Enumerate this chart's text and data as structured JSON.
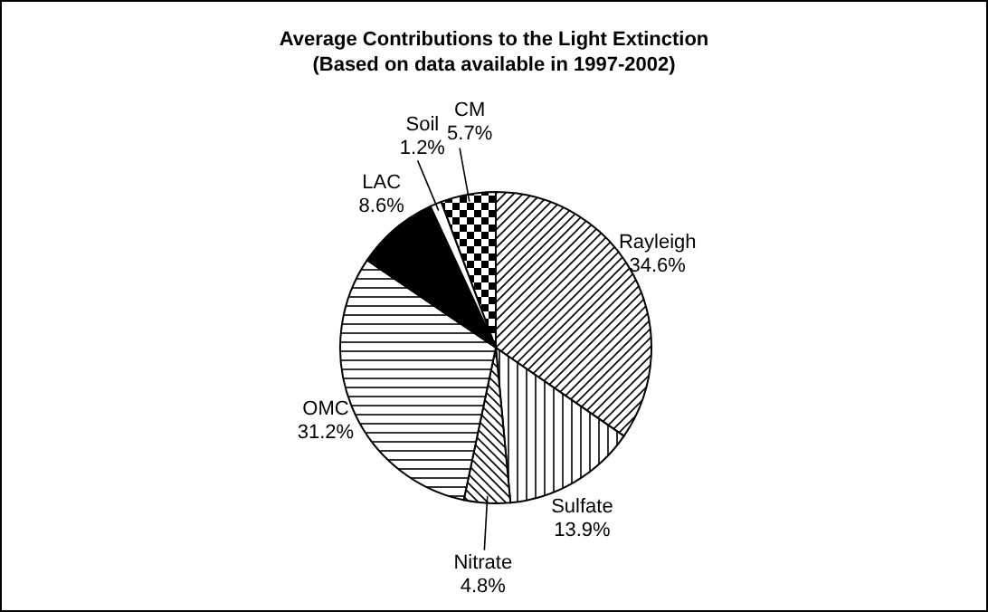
{
  "chart_data": {
    "type": "pie",
    "title": "Average Contributions to the Light Extinction",
    "subtitle": "(Based on data available in 1997-2002)",
    "categories": [
      "Rayleigh",
      "Sulfate",
      "Nitrate",
      "OMC",
      "LAC",
      "Soil",
      "CM"
    ],
    "values": [
      34.6,
      13.9,
      4.8,
      31.2,
      8.6,
      1.2,
      5.7
    ],
    "value_labels": [
      "34.6%",
      "13.9%",
      "4.8%",
      "31.2%",
      "8.6%",
      "1.2%",
      "5.7%"
    ],
    "colors": [
      "#000000",
      "#000000",
      "#000000",
      "#000000",
      "#000000",
      "#000000",
      "#000000"
    ]
  }
}
